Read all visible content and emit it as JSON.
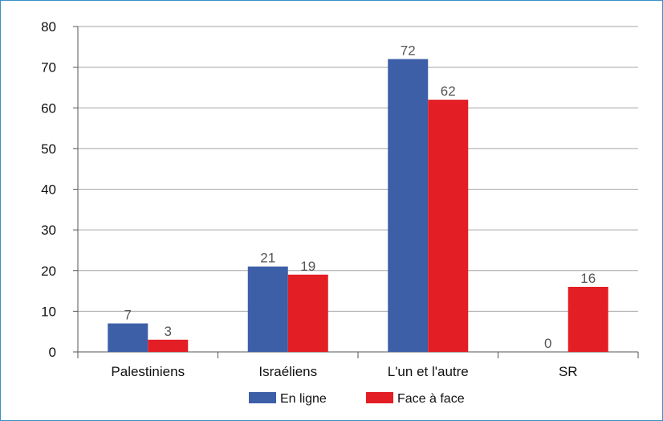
{
  "chart_data": {
    "type": "bar",
    "categories": [
      "Palestiniens",
      "Israéliens",
      "L'un et l'autre",
      "SR"
    ],
    "series": [
      {
        "name": "En ligne",
        "values": [
          7,
          21,
          72,
          0
        ],
        "color": "#3d5fa8"
      },
      {
        "name": "Face à face",
        "values": [
          3,
          19,
          62,
          16
        ],
        "color": "#e31e24"
      }
    ],
    "ylim": [
      0,
      80
    ],
    "yticks": [
      0,
      10,
      20,
      30,
      40,
      50,
      60,
      70,
      80
    ],
    "grid": true,
    "legend_position": "bottom"
  }
}
